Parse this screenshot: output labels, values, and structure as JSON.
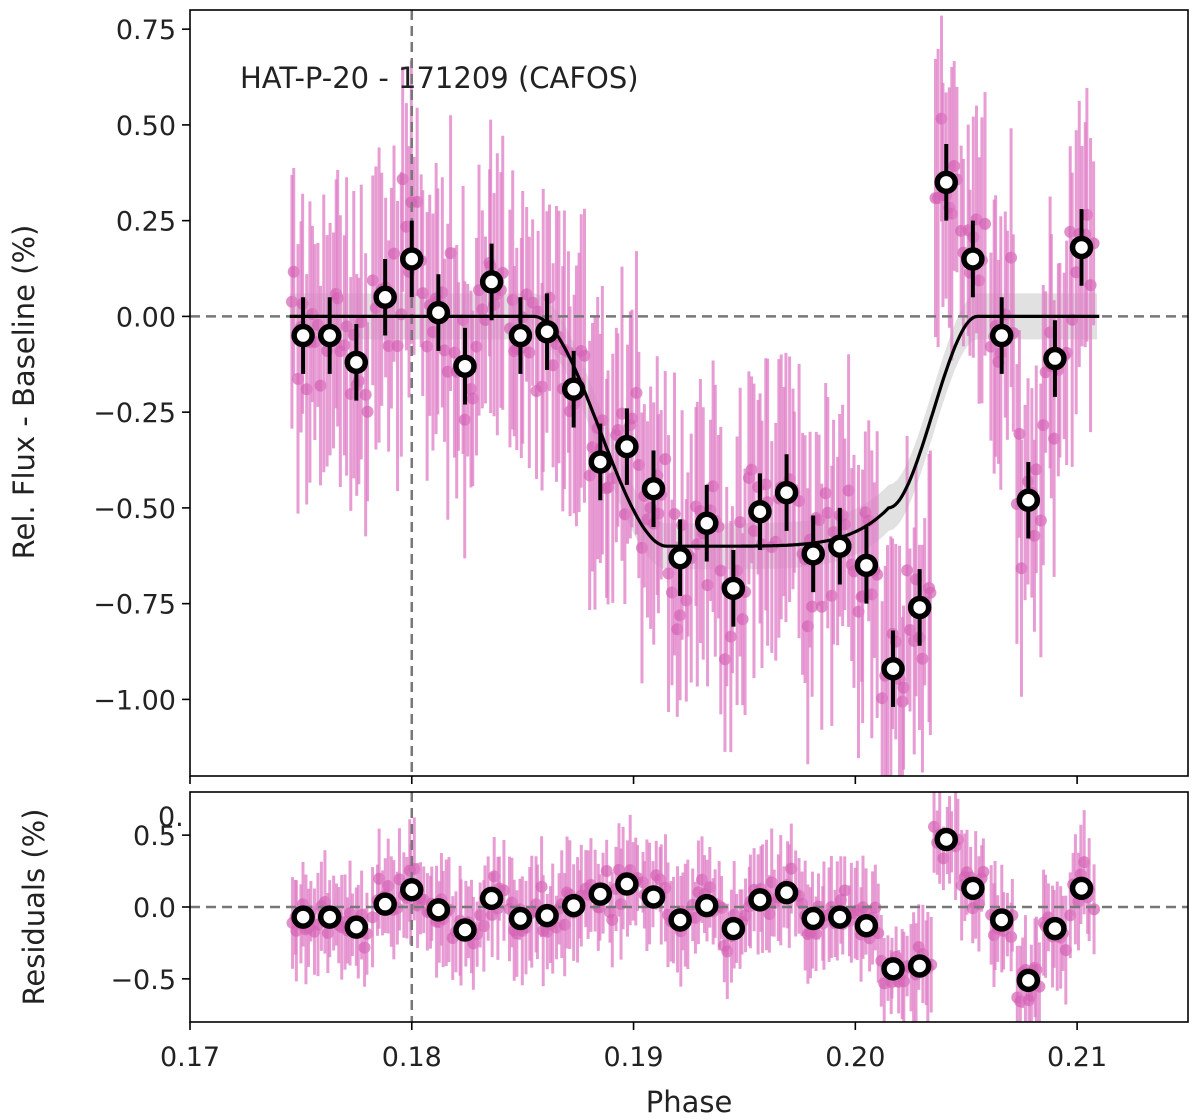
{
  "chart_data": [
    {
      "type": "scatter",
      "panel": "main",
      "annotation": "HAT-P-20 - 171209 (CAFOS)",
      "ylabel": "Rel. Flux - Baseline (%)",
      "xlabel": "",
      "xlim": [
        0.17,
        0.215
      ],
      "ylim": [
        -1.2,
        0.8
      ],
      "xticks": [
        0.17,
        0.18,
        0.19,
        0.2,
        0.21
      ],
      "yticks": [
        0.75,
        0.5,
        0.25,
        0.0,
        -0.25,
        -0.5,
        -0.75,
        -1.0
      ],
      "ytick_labels": [
        "0.75",
        "0.50",
        "0.25",
        "0.00",
        "−0.25",
        "−0.50",
        "−0.75",
        "−1.00"
      ],
      "reference_lines": {
        "vertical_x": 0.18,
        "horizontal_y": 0.0
      },
      "model": {
        "name": "transit model",
        "ingress_start": 0.1855,
        "full_start": 0.1915,
        "full_end": 0.2015,
        "egress_end": 0.2055,
        "depth": -0.6,
        "flat_bottom_end": -0.5,
        "x_range": [
          0.1745,
          0.211
        ]
      },
      "binned_points": {
        "x": [
          0.1751,
          0.1763,
          0.1775,
          0.1788,
          0.18,
          0.1812,
          0.1824,
          0.1836,
          0.1849,
          0.1861,
          0.1873,
          0.1885,
          0.1897,
          0.1909,
          0.1921,
          0.1933,
          0.1945,
          0.1957,
          0.1969,
          0.1981,
          0.1993,
          0.2005,
          0.2017,
          0.2029,
          0.2041,
          0.2053,
          0.2066,
          0.2078,
          0.209,
          0.2102
        ],
        "y": [
          -0.05,
          -0.05,
          -0.12,
          0.05,
          0.15,
          0.01,
          -0.13,
          0.09,
          -0.05,
          -0.04,
          -0.19,
          -0.38,
          -0.34,
          -0.45,
          -0.63,
          -0.54,
          -0.71,
          -0.51,
          -0.46,
          -0.62,
          -0.6,
          -0.65,
          -0.92,
          -0.76,
          0.35,
          0.15,
          -0.05,
          -0.48,
          -0.11,
          0.18
        ],
        "yerr": 0.1
      }
    },
    {
      "type": "scatter",
      "panel": "residuals",
      "ylabel": "Residuals (%)",
      "xlabel": "Phase",
      "xlim": [
        0.17,
        0.215
      ],
      "ylim": [
        -0.8,
        0.8
      ],
      "xticks": [
        0.17,
        0.18,
        0.19,
        0.2,
        0.21
      ],
      "xtick_labels": [
        "0.17",
        "0.18",
        "0.19",
        "0.20",
        "0.21"
      ],
      "yticks": [
        0.5,
        0.0,
        -0.5
      ],
      "ytick_labels": [
        "0.5",
        "0.0",
        "−0.5"
      ],
      "stray_label": "0.",
      "reference_lines": {
        "vertical_x": 0.18,
        "horizontal_y": 0.0
      },
      "binned_points": {
        "x": [
          0.1751,
          0.1763,
          0.1775,
          0.1788,
          0.18,
          0.1812,
          0.1824,
          0.1836,
          0.1849,
          0.1861,
          0.1873,
          0.1885,
          0.1897,
          0.1909,
          0.1921,
          0.1933,
          0.1945,
          0.1957,
          0.1969,
          0.1981,
          0.1993,
          0.2005,
          0.2017,
          0.2029,
          0.2041,
          0.2053,
          0.2066,
          0.2078,
          0.209,
          0.2102
        ],
        "y": [
          -0.07,
          -0.07,
          -0.14,
          0.02,
          0.12,
          -0.02,
          -0.16,
          0.06,
          -0.08,
          -0.06,
          0.01,
          0.09,
          0.16,
          0.07,
          -0.09,
          0.01,
          -0.15,
          0.05,
          0.1,
          -0.08,
          -0.07,
          -0.13,
          -0.43,
          -0.41,
          0.47,
          0.13,
          -0.09,
          -0.51,
          -0.15,
          0.13
        ]
      }
    }
  ],
  "colors": {
    "raw_points": "#d462b4",
    "raw_errorbars": "#e07cc6",
    "model": "#000000",
    "model_band": "#bdbdbd",
    "binned_fill": "#ffffff",
    "binned_edge": "#000000",
    "reference_line": "#777777"
  }
}
